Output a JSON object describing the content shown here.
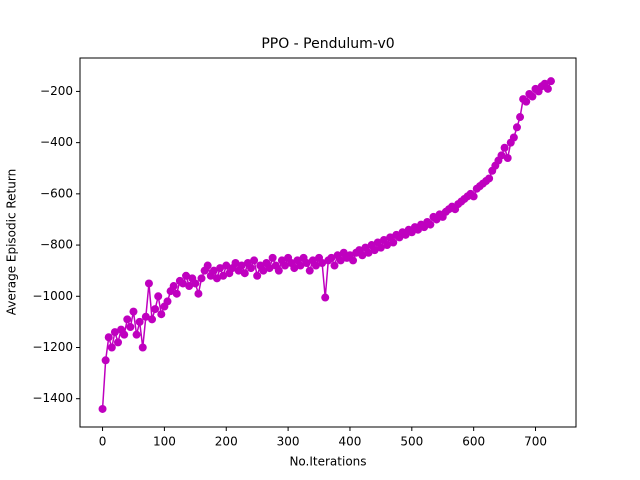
{
  "chart_data": {
    "type": "line",
    "title": "PPO - Pendulum-v0",
    "x_label": "No.Iterations",
    "y_label": "Average Episodic Return",
    "x": [
      0,
      5,
      10,
      15,
      20,
      25,
      30,
      35,
      40,
      45,
      50,
      55,
      60,
      65,
      70,
      75,
      80,
      85,
      90,
      95,
      100,
      105,
      110,
      115,
      120,
      125,
      130,
      135,
      140,
      145,
      150,
      155,
      160,
      165,
      170,
      175,
      180,
      185,
      190,
      195,
      200,
      205,
      210,
      215,
      220,
      225,
      230,
      235,
      240,
      245,
      250,
      255,
      260,
      265,
      270,
      275,
      280,
      285,
      290,
      295,
      300,
      305,
      310,
      315,
      320,
      325,
      330,
      335,
      340,
      345,
      350,
      355,
      360,
      365,
      370,
      375,
      380,
      385,
      390,
      395,
      400,
      405,
      410,
      415,
      420,
      425,
      430,
      435,
      440,
      445,
      450,
      455,
      460,
      465,
      470,
      475,
      480,
      485,
      490,
      495,
      500,
      505,
      510,
      515,
      520,
      525,
      530,
      535,
      540,
      545,
      550,
      555,
      560,
      565,
      570,
      575,
      580,
      585,
      590,
      595,
      600,
      605,
      610,
      615,
      620,
      625,
      630,
      635,
      640,
      645,
      650,
      655,
      660,
      665,
      670,
      675,
      680,
      685,
      690,
      695,
      700,
      705,
      710,
      715,
      720,
      725
    ],
    "series": [
      {
        "color": "#bf00bf",
        "values": [
          -1440,
          -1250,
          -1160,
          -1200,
          -1140,
          -1180,
          -1130,
          -1150,
          -1090,
          -1120,
          -1060,
          -1150,
          -1100,
          -1200,
          -1080,
          -950,
          -1090,
          -1050,
          -1000,
          -1070,
          -1040,
          -1020,
          -980,
          -960,
          -990,
          -940,
          -950,
          -920,
          -960,
          -930,
          -950,
          -990,
          -930,
          -900,
          -880,
          -920,
          -900,
          -930,
          -890,
          -920,
          -880,
          -910,
          -890,
          -870,
          -900,
          -880,
          -910,
          -870,
          -890,
          -860,
          -920,
          -880,
          -900,
          -870,
          -890,
          -850,
          -880,
          -900,
          -860,
          -880,
          -850,
          -870,
          -890,
          -860,
          -880,
          -850,
          -870,
          -900,
          -860,
          -880,
          -850,
          -870,
          -1005,
          -860,
          -850,
          -880,
          -840,
          -860,
          -830,
          -850,
          -840,
          -860,
          -830,
          -820,
          -840,
          -810,
          -830,
          -800,
          -820,
          -790,
          -810,
          -780,
          -800,
          -770,
          -790,
          -760,
          -770,
          -750,
          -760,
          -740,
          -750,
          -730,
          -740,
          -720,
          -730,
          -710,
          -720,
          -690,
          -700,
          -680,
          -690,
          -670,
          -660,
          -650,
          -660,
          -640,
          -630,
          -620,
          -610,
          -600,
          -610,
          -580,
          -570,
          -560,
          -550,
          -540,
          -510,
          -490,
          -470,
          -450,
          -420,
          -460,
          -400,
          -380,
          -340,
          -300,
          -230,
          -240,
          -210,
          -220,
          -190,
          -200,
          -180,
          -170,
          -190,
          -160
        ]
      }
    ],
    "xlim": [
      -36.45,
      765.45
    ],
    "ylim": [
      -1510.5,
      -69.5
    ],
    "xticks": [
      0,
      100,
      200,
      300,
      400,
      500,
      600,
      700
    ],
    "yticks": [
      {
        "value": -1400,
        "label": "−1400"
      },
      {
        "value": -1200,
        "label": "−1200"
      },
      {
        "value": -1000,
        "label": "−1000"
      },
      {
        "value": -800,
        "label": "−800"
      },
      {
        "value": -600,
        "label": "−600"
      },
      {
        "value": -400,
        "label": "−400"
      },
      {
        "value": -200,
        "label": "−200"
      }
    ]
  }
}
